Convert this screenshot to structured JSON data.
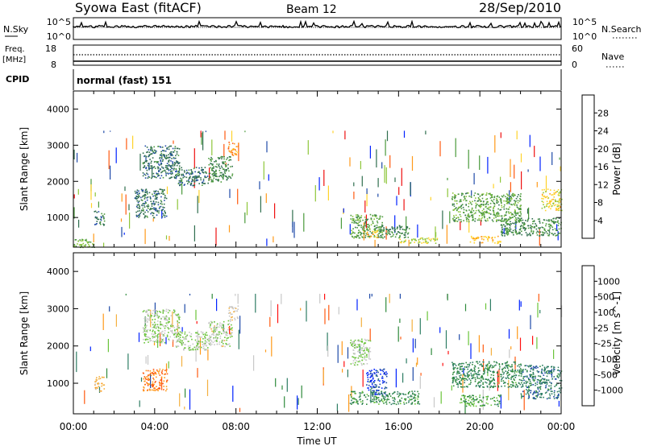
{
  "header": {
    "station": "Syowa East (fitACF)",
    "beam": "Beam 12",
    "date": "28/Sep/2010"
  },
  "nsky_panel": {
    "left_label": "N.Sky",
    "left_ticks": [
      "10^5",
      "10^0"
    ],
    "right_ticks": [
      "10^5",
      "10^0"
    ],
    "right_label": "N.Search"
  },
  "freq_panel": {
    "left_label_1": "Freq.",
    "left_label_2": "[MHz]",
    "left_ticks": [
      "18",
      "8"
    ],
    "right_ticks": [
      "60",
      "0"
    ],
    "right_label": "Nave"
  },
  "cpid_panel": {
    "label": "CPID",
    "mode": "normal (fast) 151"
  },
  "x_ticks": [
    "00:00",
    "04:00",
    "08:00",
    "12:00",
    "16:00",
    "20:00",
    "00:00"
  ],
  "x_title": "Time UT",
  "colors": {
    "power": [
      "#0022ff",
      "#1f4aa8",
      "#2f6e4e",
      "#4b9a3c",
      "#8ec63a",
      "#ffd32a",
      "#ff9a1a",
      "#ff5a10",
      "#ee1010"
    ],
    "velocity": [
      "#ff1010",
      "#ff5a10",
      "#ff9a1a",
      "#f4b040",
      "#c8c8c8",
      "#6ac43a",
      "#2f8a3c",
      "#2e7d64",
      "#1f4aa8",
      "#0022ff"
    ]
  },
  "chart_data": [
    {
      "type": "heatmap",
      "name": "power",
      "ylabel": "Slant Range [km]",
      "xlabel": "Time UT",
      "xlim_hours": [
        0,
        24
      ],
      "ylim_km": [
        180,
        4500
      ],
      "y_ticks": [
        "1000",
        "2000",
        "3000",
        "4000"
      ],
      "colorbar": {
        "label": "Power [dB]",
        "ticks": [
          "4",
          "8",
          "12",
          "16",
          "20",
          "24",
          "28"
        ],
        "range": [
          0,
          30
        ]
      },
      "regions": [
        {
          "t": [
            3.4,
            5.2
          ],
          "r": [
            2100,
            3000
          ],
          "value": 8
        },
        {
          "t": [
            5.0,
            6.6
          ],
          "r": [
            1900,
            2400
          ],
          "value": 8
        },
        {
          "t": [
            6.6,
            7.8
          ],
          "r": [
            2000,
            2700
          ],
          "value": 10
        },
        {
          "t": [
            7.6,
            8.1
          ],
          "r": [
            2700,
            3100
          ],
          "value": 22
        },
        {
          "t": [
            3.0,
            4.6
          ],
          "r": [
            1000,
            1800
          ],
          "value": 8
        },
        {
          "t": [
            1.0,
            1.5
          ],
          "r": [
            800,
            1200
          ],
          "value": 8
        },
        {
          "t": [
            0.0,
            1.0
          ],
          "r": [
            180,
            420
          ],
          "value": 14
        },
        {
          "t": [
            13.6,
            15.2
          ],
          "r": [
            450,
            1100
          ],
          "value": 12
        },
        {
          "t": [
            14.4,
            15.0
          ],
          "r": [
            450,
            650
          ],
          "value": 20
        },
        {
          "t": [
            15.0,
            16.5
          ],
          "r": [
            450,
            800
          ],
          "value": 10
        },
        {
          "t": [
            16.0,
            18.0
          ],
          "r": [
            300,
            450
          ],
          "value": 16
        },
        {
          "t": [
            18.6,
            22.0
          ],
          "r": [
            900,
            1700
          ],
          "value": 12
        },
        {
          "t": [
            19.5,
            21.0
          ],
          "r": [
            300,
            500
          ],
          "value": 20
        },
        {
          "t": [
            21.0,
            24.0
          ],
          "r": [
            500,
            1000
          ],
          "value": 10
        },
        {
          "t": [
            23.0,
            24.0
          ],
          "r": [
            1200,
            1800
          ],
          "value": 18
        }
      ]
    },
    {
      "type": "heatmap",
      "name": "velocity",
      "ylabel": "Slant Range [km]",
      "xlabel": "Time UT",
      "xlim_hours": [
        0,
        24
      ],
      "ylim_km": [
        180,
        4500
      ],
      "y_ticks": [
        "1000",
        "2000",
        "3000",
        "4000"
      ],
      "colorbar": {
        "label": "Velocity [m s^-1]",
        "ticks": [
          "1000",
          "500",
          "100",
          "25",
          "-25",
          "-100",
          "-500",
          "-1000"
        ],
        "range": [
          -1200,
          1200
        ]
      },
      "regions": [
        {
          "t": [
            3.4,
            5.2
          ],
          "r": [
            2100,
            3000
          ],
          "value": 0
        },
        {
          "t": [
            5.0,
            6.6
          ],
          "r": [
            1900,
            2400
          ],
          "value": 0
        },
        {
          "t": [
            6.6,
            7.8
          ],
          "r": [
            2000,
            2700
          ],
          "value": -60
        },
        {
          "t": [
            7.6,
            8.1
          ],
          "r": [
            2700,
            3100
          ],
          "value": -200
        },
        {
          "t": [
            3.4,
            4.6
          ],
          "r": [
            800,
            1400
          ],
          "value": -700
        },
        {
          "t": [
            1.0,
            1.5
          ],
          "r": [
            800,
            1200
          ],
          "value": -300
        },
        {
          "t": [
            13.6,
            14.6
          ],
          "r": [
            1500,
            2200
          ],
          "value": 0
        },
        {
          "t": [
            14.4,
            15.4
          ],
          "r": [
            700,
            1400
          ],
          "value": 900
        },
        {
          "t": [
            13.6,
            17.0
          ],
          "r": [
            450,
            800
          ],
          "value": 400
        },
        {
          "t": [
            18.6,
            22.0
          ],
          "r": [
            900,
            1600
          ],
          "value": 450
        },
        {
          "t": [
            22.0,
            24.0
          ],
          "r": [
            600,
            1500
          ],
          "value": 600
        },
        {
          "t": [
            19.0,
            21.0
          ],
          "r": [
            400,
            700
          ],
          "value": 300
        }
      ]
    }
  ]
}
